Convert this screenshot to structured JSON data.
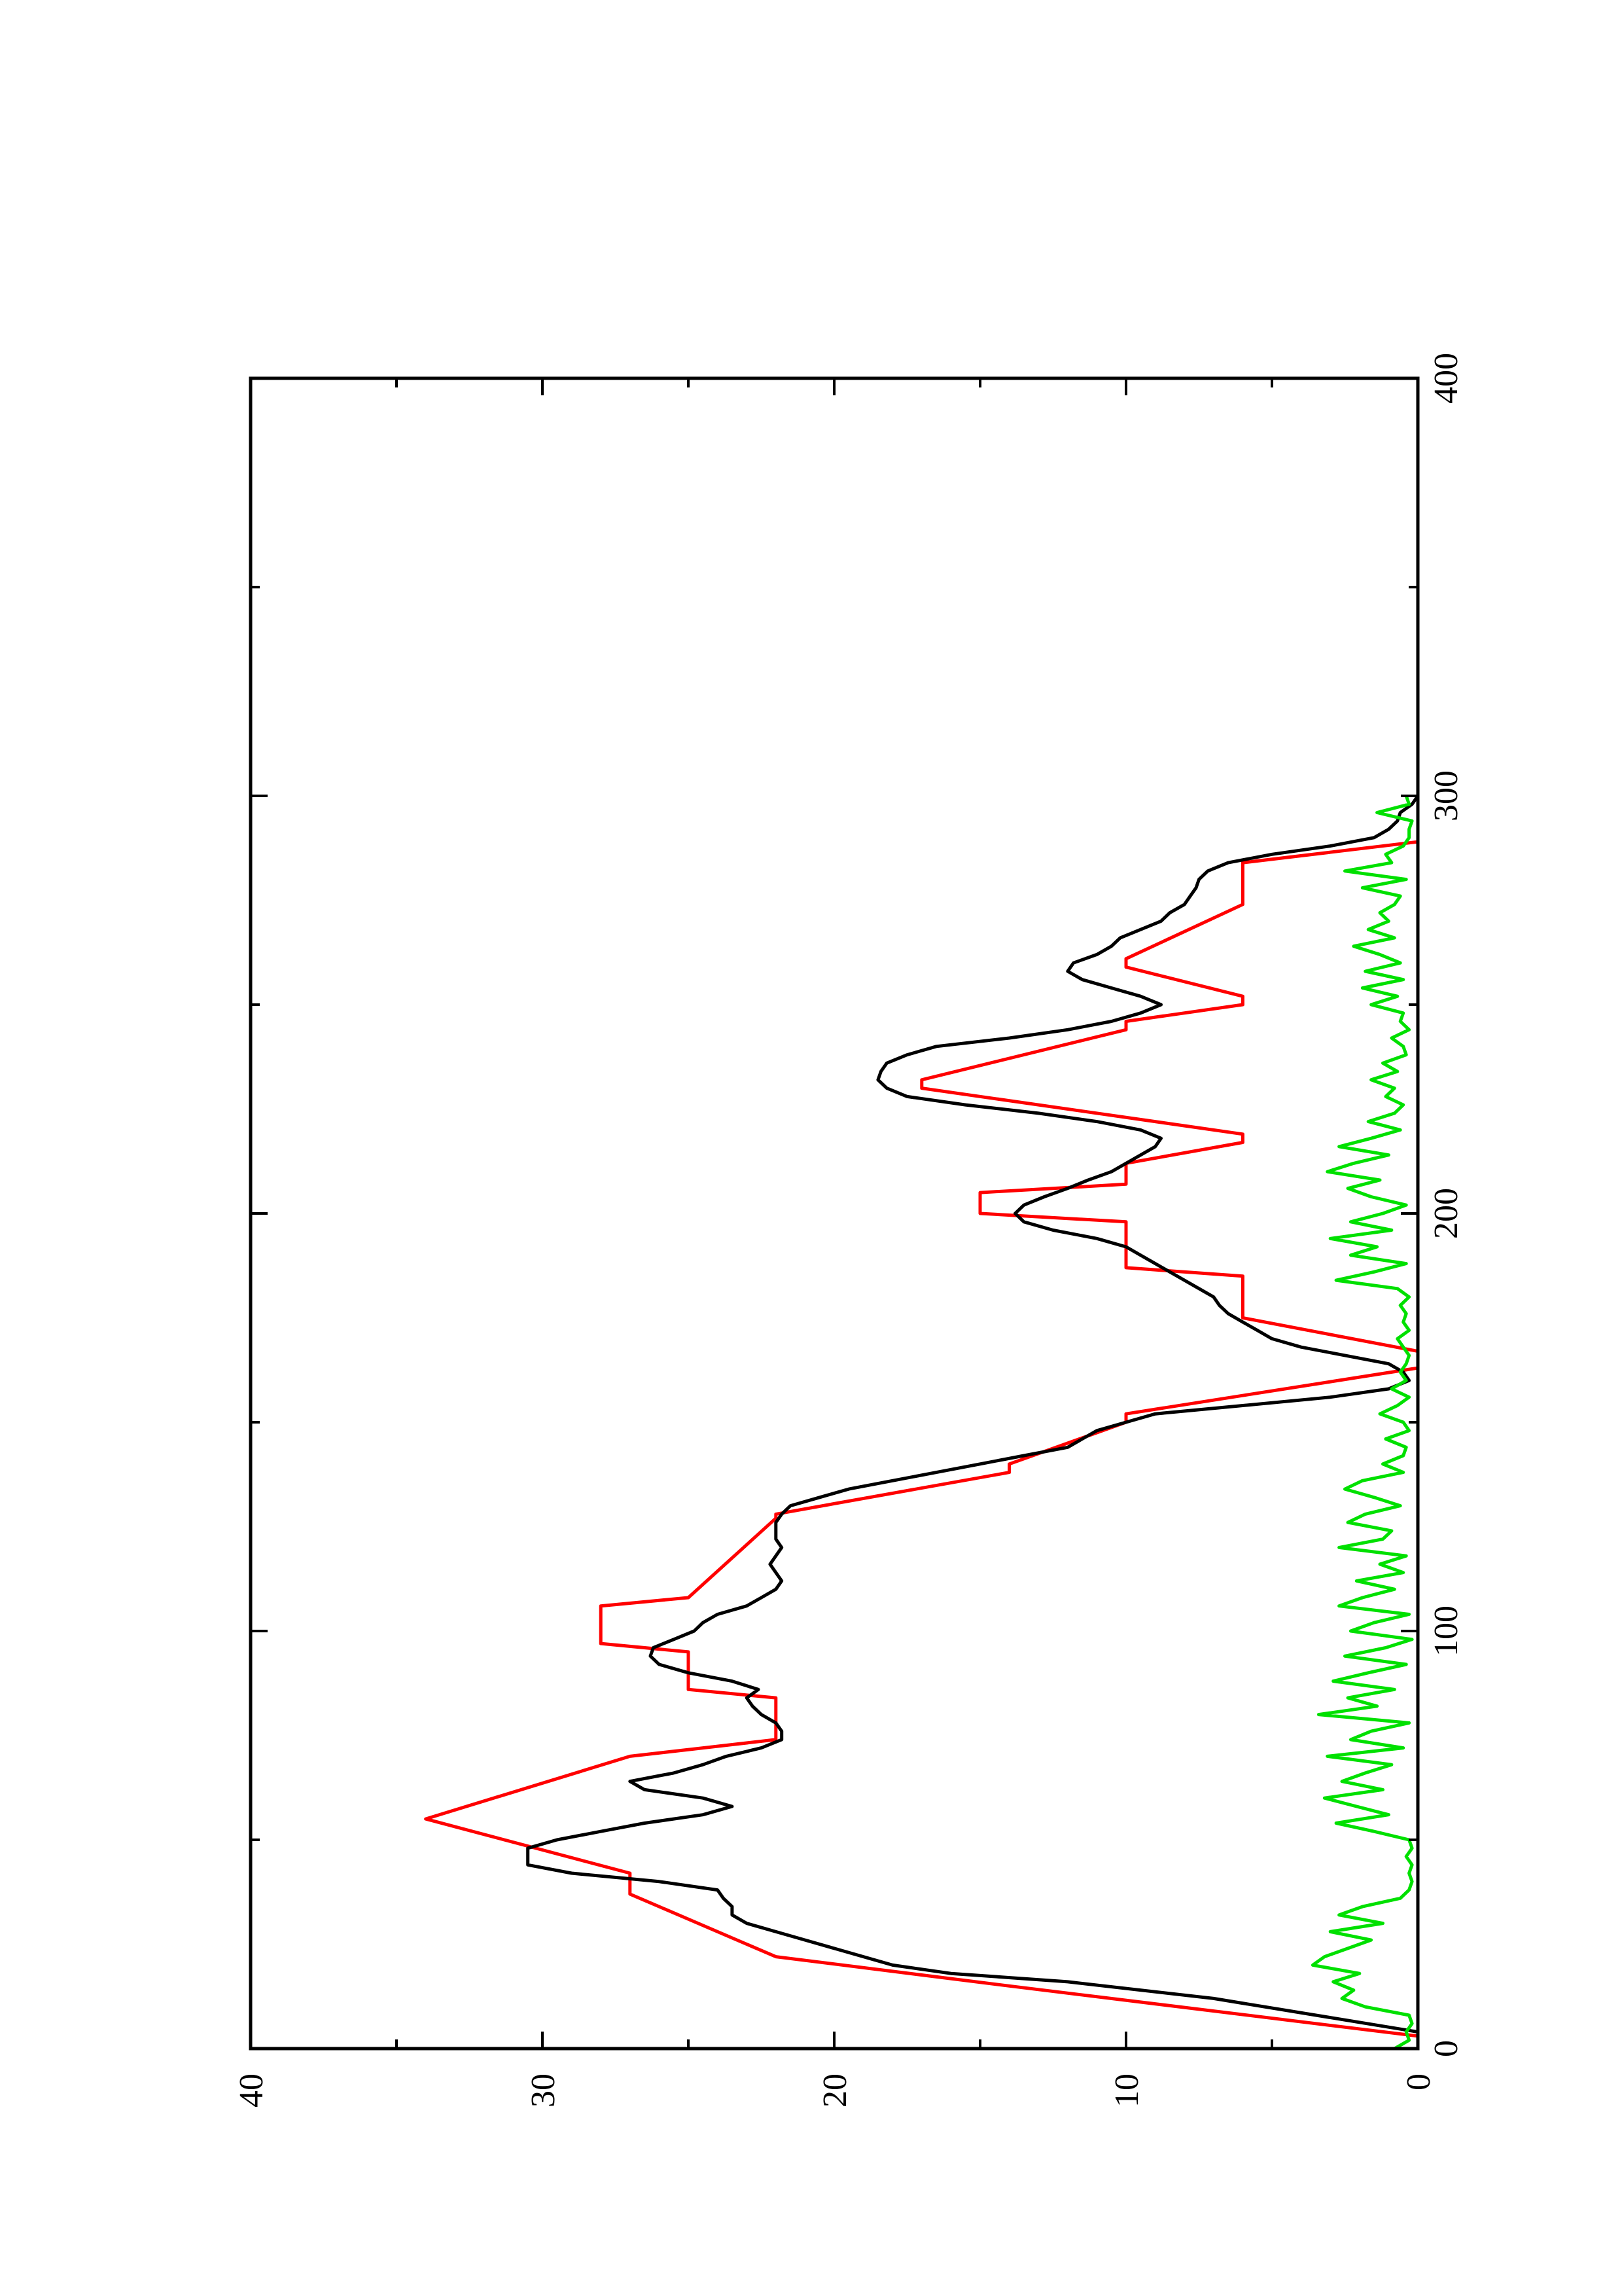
{
  "chart_data": {
    "type": "line",
    "orientation": "rotated 90 degrees counter-clockwise (landscape plot on portrait page)",
    "title": "",
    "xlabel": "",
    "ylabel": "",
    "xlim": [
      0,
      400
    ],
    "ylim": [
      0,
      40
    ],
    "x_ticks": [
      0,
      100,
      200,
      300,
      400
    ],
    "x_tick_labels": [
      "0",
      "100",
      "200",
      "300",
      "400"
    ],
    "y_ticks": [
      0,
      10,
      20,
      30,
      40
    ],
    "y_tick_labels": [
      "0",
      "10",
      "20",
      "30",
      "40"
    ],
    "grid": false,
    "legend": "none",
    "series": [
      {
        "color": "#ff0000",
        "x": [
          0,
          3,
          15,
          22,
          37,
          42,
          55,
          70,
          74,
          84,
          86,
          95,
          97,
          106,
          108,
          127,
          128,
          138,
          140,
          150,
          152,
          163,
          167,
          175,
          179,
          185,
          187,
          198,
          200,
          205,
          207,
          210,
          212,
          217,
          219,
          230,
          232,
          244,
          246,
          250,
          252,
          259,
          261,
          274,
          276,
          282,
          284,
          289,
          290
        ],
        "y": [
          0,
          0,
          14,
          22,
          27,
          27,
          34,
          27,
          22,
          22,
          25,
          25,
          28,
          28,
          25,
          22,
          22,
          14,
          14,
          10,
          10,
          0,
          0,
          6,
          6,
          6,
          10,
          10,
          15,
          15,
          10,
          10,
          10,
          6,
          6,
          17,
          17,
          10,
          10,
          6,
          6,
          10,
          10,
          6,
          6,
          6,
          6,
          0,
          0
        ]
      },
      {
        "color": "#000000",
        "x": [
          0,
          4,
          12,
          16,
          18,
          20,
          22,
          24,
          26,
          28,
          30,
          32,
          34,
          36,
          38,
          40,
          42,
          44,
          46,
          48,
          50,
          52,
          54,
          56,
          58,
          60,
          62,
          64,
          66,
          68,
          70,
          72,
          74,
          76,
          78,
          80,
          82,
          84,
          86,
          88,
          90,
          92,
          94,
          96,
          98,
          100,
          102,
          104,
          106,
          108,
          110,
          112,
          114,
          116,
          118,
          120,
          122,
          124,
          126,
          128,
          130,
          132,
          134,
          136,
          138,
          140,
          142,
          144,
          146,
          148,
          150,
          152,
          154,
          156,
          158,
          160,
          162,
          164,
          166,
          168,
          170,
          172,
          174,
          176,
          178,
          180,
          182,
          184,
          186,
          188,
          190,
          192,
          194,
          196,
          198,
          200,
          202,
          204,
          206,
          208,
          210,
          212,
          214,
          216,
          218,
          220,
          222,
          224,
          226,
          228,
          230,
          232,
          234,
          236,
          238,
          240,
          242,
          244,
          246,
          248,
          250,
          252,
          254,
          256,
          258,
          260,
          262,
          264,
          266,
          268,
          270,
          272,
          274,
          276,
          278,
          280,
          282,
          284,
          286,
          288,
          290,
          292,
          294,
          296,
          298,
          300
        ],
        "y": [
          0,
          0,
          7,
          12,
          16,
          18,
          19,
          20,
          21,
          22,
          23,
          23.5,
          23.5,
          23.8,
          24,
          26,
          29,
          30.5,
          30.5,
          30.5,
          29.5,
          28,
          26.5,
          24.5,
          23.5,
          24.5,
          26.5,
          27,
          25.5,
          24.5,
          23.7,
          22.5,
          21.8,
          21.8,
          22,
          22.5,
          22.8,
          23,
          22.6,
          23.5,
          25,
          26,
          26.3,
          26.2,
          25.5,
          24.8,
          24.5,
          24,
          23,
          22.5,
          22,
          21.8,
          22,
          22.2,
          22,
          21.8,
          22,
          22,
          22,
          21.8,
          21.5,
          20.5,
          19.5,
          18,
          16.5,
          15,
          13.5,
          12,
          11.5,
          11,
          10,
          9,
          6,
          3,
          1,
          0.3,
          0.5,
          1,
          2.5,
          4,
          5,
          5.5,
          6,
          6.5,
          6.8,
          7,
          7.5,
          8,
          8.5,
          9,
          9.5,
          10,
          11,
          12.5,
          13.5,
          13.8,
          13.5,
          12.8,
          12,
          11.3,
          10.5,
          10,
          9.5,
          9,
          8.8,
          9.5,
          11,
          13,
          15.5,
          17.5,
          18.2,
          18.5,
          18.4,
          18.2,
          17.5,
          16.5,
          14,
          12,
          10.5,
          9.5,
          8.8,
          9.5,
          10.5,
          11.5,
          12,
          11.8,
          11,
          10.5,
          10.2,
          9.5,
          8.8,
          8.5,
          8,
          7.8,
          7.6,
          7.5,
          7.2,
          6.5,
          5,
          3,
          1.5,
          1,
          0.7,
          0.6,
          0.2,
          0
        ]
      },
      {
        "color": "#00e000",
        "x": [
          0,
          2,
          4,
          6,
          8,
          10,
          12,
          14,
          16,
          18,
          20,
          22,
          24,
          26,
          28,
          30,
          32,
          34,
          36,
          38,
          40,
          42,
          44,
          46,
          48,
          50,
          52,
          54,
          56,
          58,
          60,
          62,
          64,
          66,
          68,
          70,
          72,
          74,
          76,
          78,
          80,
          82,
          84,
          86,
          88,
          90,
          92,
          94,
          96,
          98,
          100,
          102,
          104,
          106,
          108,
          110,
          112,
          114,
          116,
          118,
          120,
          122,
          124,
          126,
          128,
          130,
          132,
          134,
          136,
          138,
          140,
          142,
          144,
          146,
          148,
          150,
          152,
          154,
          156,
          158,
          160,
          162,
          164,
          166,
          168,
          170,
          172,
          174,
          176,
          178,
          180,
          182,
          184,
          186,
          188,
          190,
          192,
          194,
          196,
          198,
          200,
          202,
          204,
          206,
          208,
          210,
          212,
          214,
          216,
          218,
          220,
          222,
          224,
          226,
          228,
          230,
          232,
          234,
          236,
          238,
          240,
          242,
          244,
          246,
          248,
          250,
          252,
          254,
          256,
          258,
          260,
          262,
          264,
          266,
          268,
          270,
          272,
          274,
          276,
          278,
          280,
          282,
          284,
          286,
          288,
          290,
          292,
          294,
          296,
          298,
          300
        ],
        "y": [
          0.8,
          0.3,
          0.4,
          0.2,
          0.3,
          1.8,
          2.6,
          2.2,
          2.9,
          2.0,
          3.6,
          3.2,
          2.4,
          1.6,
          3.0,
          1.2,
          2.7,
          1.9,
          0.6,
          0.3,
          0.2,
          0.3,
          0.2,
          0.4,
          0.2,
          0.3,
          1.5,
          2.8,
          1.0,
          2.1,
          3.2,
          1.2,
          2.6,
          1.8,
          0.9,
          3.1,
          0.5,
          2.3,
          1.6,
          0.3,
          3.4,
          1.4,
          2.4,
          0.8,
          2.9,
          1.7,
          0.4,
          2.5,
          1.1,
          0.2,
          2.3,
          1.5,
          0.3,
          2.7,
          1.9,
          0.8,
          2.1,
          0.5,
          1.3,
          0.4,
          2.7,
          1.2,
          0.9,
          2.4,
          1.8,
          0.6,
          1.5,
          2.5,
          1.9,
          0.5,
          1.2,
          0.5,
          0.4,
          1.1,
          0.3,
          0.5,
          1.3,
          0.7,
          0.3,
          0.9,
          0.4,
          0.6,
          0.4,
          0.3,
          0.5,
          0.7,
          0.3,
          0.5,
          0.4,
          0.6,
          0.3,
          0.7,
          2.8,
          1.5,
          0.4,
          2.3,
          1.4,
          3.0,
          0.9,
          2.3,
          1.2,
          0.4,
          1.6,
          2.4,
          1.3,
          3.1,
          2.2,
          1.0,
          2.7,
          1.6,
          0.6,
          1.7,
          0.8,
          0.5,
          1.1,
          0.8,
          1.6,
          0.7,
          1.2,
          0.4,
          0.5,
          0.9,
          0.3,
          0.6,
          0.5,
          1.6,
          0.7,
          1.9,
          0.5,
          1.8,
          0.6,
          1.3,
          2.2,
          0.8,
          1.7,
          1.0,
          1.3,
          0.8,
          0.6,
          1.9,
          0.4,
          2.5,
          0.9,
          1.1,
          0.5,
          0.3,
          0.3,
          0.2,
          1.4,
          0.3,
          0.4
        ]
      }
    ]
  }
}
